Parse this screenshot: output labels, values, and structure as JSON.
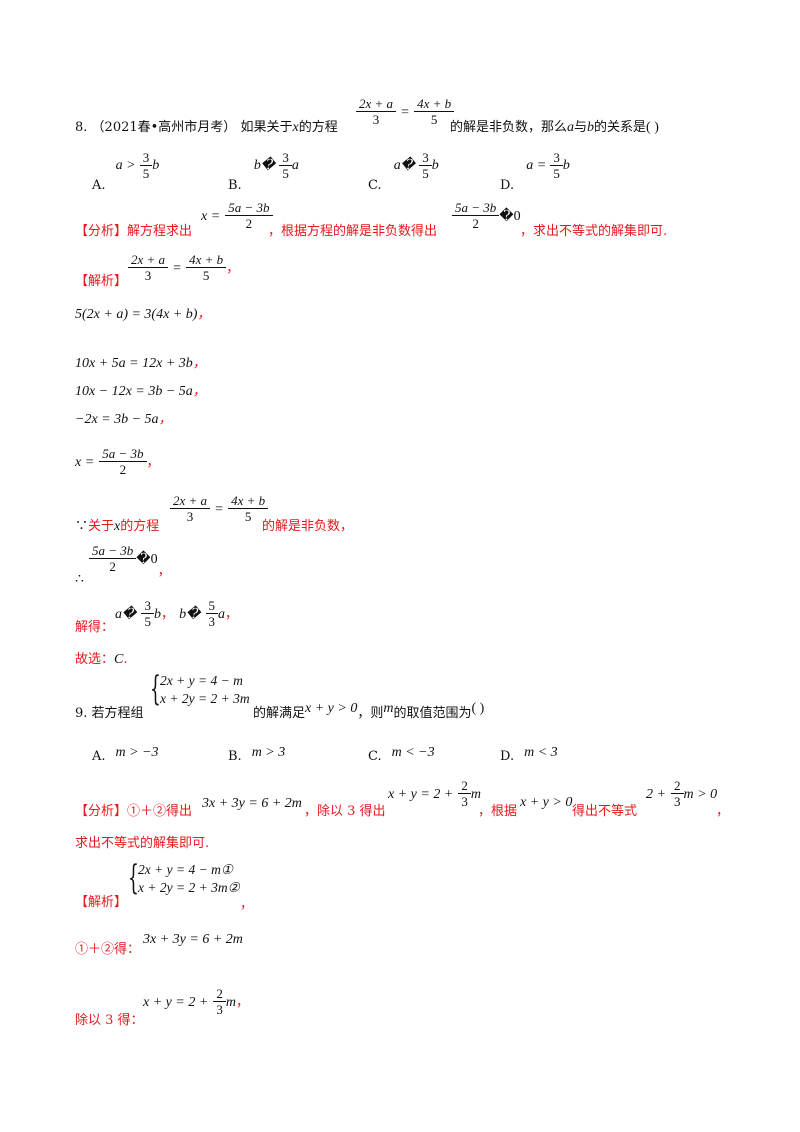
{
  "q8": {
    "num": "8.",
    "source": "（2021春•高州市月考）",
    "stem_a": "如果关于",
    "var_x": "x",
    "stem_b": "的方程",
    "eq_l_num": "2x + a",
    "eq_l_den": "3",
    "eq_eq": "=",
    "eq_r_num": "4x + b",
    "eq_r_den": "5",
    "stem_c": "的解是非负数，那么",
    "var_a": "a",
    "with": "与",
    "var_b": "b",
    "stem_d": "的关系是",
    "paren": "(        )",
    "opts": {
      "A_label": "A.",
      "A_pre": "a >",
      "A_num": "3",
      "A_den": "5",
      "A_post": "b",
      "B_label": "B.",
      "B_pre": "b�",
      "B_num": "3",
      "B_den": "5",
      "B_post": "a",
      "C_label": "C.",
      "C_pre": "a�",
      "C_num": "3",
      "C_den": "5",
      "C_post": "b",
      "D_label": "D.",
      "D_pre": "a =",
      "D_num": "3",
      "D_den": "5",
      "D_post": "b"
    },
    "analysis_tag": "【分析】",
    "analysis_a": "解方程求出",
    "an_x": "x =",
    "an_num": "5a − 3b",
    "an_den": "2",
    "analysis_b": "，根据方程的解是非负数得出",
    "an2_num": "5a − 3b",
    "an2_den": "2",
    "an2_post": "�0",
    "analysis_c": "，求出不等式的解集即可.",
    "solution_tag": "【解析】",
    "s1_num_l": "2x + a",
    "s1_den_l": "3",
    "s1_num_r": "4x + b",
    "s1_den_r": "5",
    "comma": "，",
    "s2": "5(2x + a) = 3(4x + b)",
    "s3": "10x + 5a = 12x + 3b",
    "s4": "10x − 12x = 3b − 5a",
    "s5": "−2x = 3b − 5a",
    "s6_x": "x =",
    "s6_num": "5a − 3b",
    "s6_den": "2",
    "because": "∵",
    "because_a": "关于",
    "because_b": "的方程",
    "because_c": "的解是非负数，",
    "therefore": "∴",
    "th_num": "5a − 3b",
    "th_den": "2",
    "th_post": "�0",
    "solve_label": "解得：",
    "sol_a_pre": "a�",
    "sol_a_num": "3",
    "sol_a_den": "5",
    "sol_a_post": "b",
    "sol_b_pre": "b�",
    "sol_b_num": "5",
    "sol_b_den": "3",
    "sol_b_post": "a",
    "choose_label": "故选：",
    "choose_val": "C",
    "period": "."
  },
  "q9": {
    "num": "9.",
    "stem_a": "若方程组",
    "sys1": "2x + y = 4 − m",
    "sys2": "x + 2y = 2 + 3m",
    "stem_b": "的解满足",
    "cond": "x + y > 0",
    "stem_c": "，则",
    "var_m": "m",
    "stem_d": "的取值范围为",
    "paren": "(        )",
    "opts": {
      "A_label": "A.",
      "A_val": "m > −3",
      "B_label": "B.",
      "B_val": "m > 3",
      "C_label": "C.",
      "C_val": "m < −3",
      "D_label": "D.",
      "D_val": "m < 3"
    },
    "analysis_tag": "【分析】",
    "analysis_a": "①＋②得出",
    "an_eq1": "3x + 3y = 6 + 2m",
    "analysis_b": "，除以 3 得出",
    "an_eq2_pre": "x + y = 2 +",
    "an_eq2_num": "2",
    "an_eq2_den": "3",
    "an_eq2_post": "m",
    "analysis_c": "，根据",
    "an_cond": "x + y > 0",
    "analysis_d": "得出不等式",
    "an_ineq_pre": "2 +",
    "an_ineq_num": "2",
    "an_ineq_den": "3",
    "an_ineq_post": "m > 0",
    "analysis_e": "，",
    "analysis_f": "求出不等式的解集即可.",
    "solution_tag": "【解析】",
    "sol_sys1": "2x + y = 4 − m①",
    "sol_sys2": "x + 2y = 2 + 3m②",
    "step1_label": "①＋②得：",
    "step1_eq": "3x + 3y = 6 + 2m",
    "step2_label": "除以 3 得：",
    "step2_pre": "x + y = 2 +",
    "step2_num": "2",
    "step2_den": "3",
    "step2_post": "m",
    "comma": "，"
  }
}
